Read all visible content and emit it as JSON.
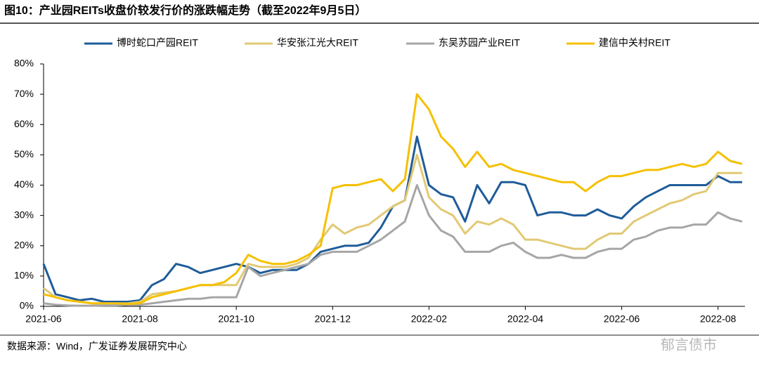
{
  "chart_data": {
    "type": "line",
    "title": "图10：产业园REITs收盘价较发行价的涨跌幅走势（截至2022年9月5日）",
    "source": "数据来源：Wind，广发证券发展研究中心",
    "watermark": "郁言债市",
    "categories": [
      "2021-06",
      null,
      null,
      null,
      null,
      null,
      null,
      null,
      "2021-08",
      null,
      null,
      null,
      null,
      null,
      null,
      null,
      "2021-10",
      null,
      null,
      null,
      null,
      null,
      null,
      null,
      "2021-12",
      null,
      null,
      null,
      null,
      null,
      null,
      null,
      "2022-02",
      null,
      null,
      null,
      null,
      null,
      null,
      null,
      "2022-04",
      null,
      null,
      null,
      null,
      null,
      null,
      null,
      "2022-06",
      null,
      null,
      null,
      null,
      null,
      null,
      null,
      "2022-08",
      null,
      null
    ],
    "ylim": [
      0,
      80
    ],
    "yticks": [
      {
        "value": 0,
        "label": "0%"
      },
      {
        "value": 10,
        "label": "10%"
      },
      {
        "value": 20,
        "label": "20%"
      },
      {
        "value": 30,
        "label": "30%"
      },
      {
        "value": 40,
        "label": "40%"
      },
      {
        "value": 50,
        "label": "50%"
      },
      {
        "value": 60,
        "label": "60%"
      },
      {
        "value": 70,
        "label": "70%"
      },
      {
        "value": 80,
        "label": "80%"
      }
    ],
    "grid": false,
    "legend": "top",
    "series": [
      {
        "name": "博时蛇口产园REIT",
        "color": "#1f5c99",
        "values": [
          14,
          4,
          3,
          2,
          2.5,
          1.5,
          1.5,
          1.5,
          2,
          7,
          9,
          14,
          13,
          11,
          12,
          13,
          14,
          13,
          11,
          12,
          12,
          12,
          14,
          18,
          19,
          20,
          20,
          21,
          26,
          33,
          35,
          56,
          40,
          37,
          36,
          28,
          40,
          34,
          41,
          41,
          40,
          30,
          31,
          31,
          30,
          30,
          32,
          30,
          29,
          33,
          36,
          38,
          40,
          40,
          40,
          40,
          43,
          41,
          41
        ]
      },
      {
        "name": "华安张江光大REIT",
        "color": "#e2c974",
        "values": [
          6,
          3,
          2,
          1.5,
          1,
          1,
          1,
          1,
          1.5,
          4,
          4.5,
          5,
          6,
          7,
          7,
          7,
          7,
          14,
          13,
          13,
          13,
          14,
          16,
          22,
          27,
          24,
          26,
          27,
          30,
          33,
          35,
          50,
          36,
          32,
          30,
          24,
          28,
          27,
          29,
          27,
          22,
          22,
          21,
          20,
          19,
          19,
          22,
          24,
          24,
          28,
          30,
          32,
          34,
          35,
          37,
          38,
          44,
          44,
          44
        ]
      },
      {
        "name": "东吴苏园产业REIT",
        "color": "#a6a6a6",
        "values": [
          1,
          0.5,
          0.3,
          0.2,
          0.2,
          0.3,
          0.3,
          0.5,
          0.5,
          1,
          1.5,
          2,
          2.5,
          2.5,
          3,
          3,
          3,
          13,
          10,
          11,
          12,
          13,
          14,
          17,
          18,
          18,
          18,
          20,
          22,
          25,
          28,
          40,
          30,
          25,
          23,
          18,
          18,
          18,
          20,
          21,
          18,
          16,
          16,
          17,
          16,
          16,
          18,
          19,
          19,
          22,
          23,
          25,
          26,
          26,
          27,
          27,
          31,
          29,
          28
        ]
      },
      {
        "name": "建信中关村REIT",
        "color": "#f5c000",
        "values": [
          4,
          3,
          2,
          1.5,
          1,
          1,
          1,
          0.8,
          1,
          3,
          4,
          5,
          6,
          7,
          7,
          8,
          11,
          17,
          15,
          14,
          14,
          15,
          17,
          20,
          39,
          40,
          40,
          41,
          42,
          38,
          42,
          70,
          65,
          56,
          52,
          46,
          51,
          46,
          47,
          45,
          44,
          43,
          42,
          41,
          41,
          38,
          41,
          43,
          43,
          44,
          45,
          45,
          46,
          47,
          46,
          47,
          51,
          48,
          47
        ]
      }
    ]
  }
}
